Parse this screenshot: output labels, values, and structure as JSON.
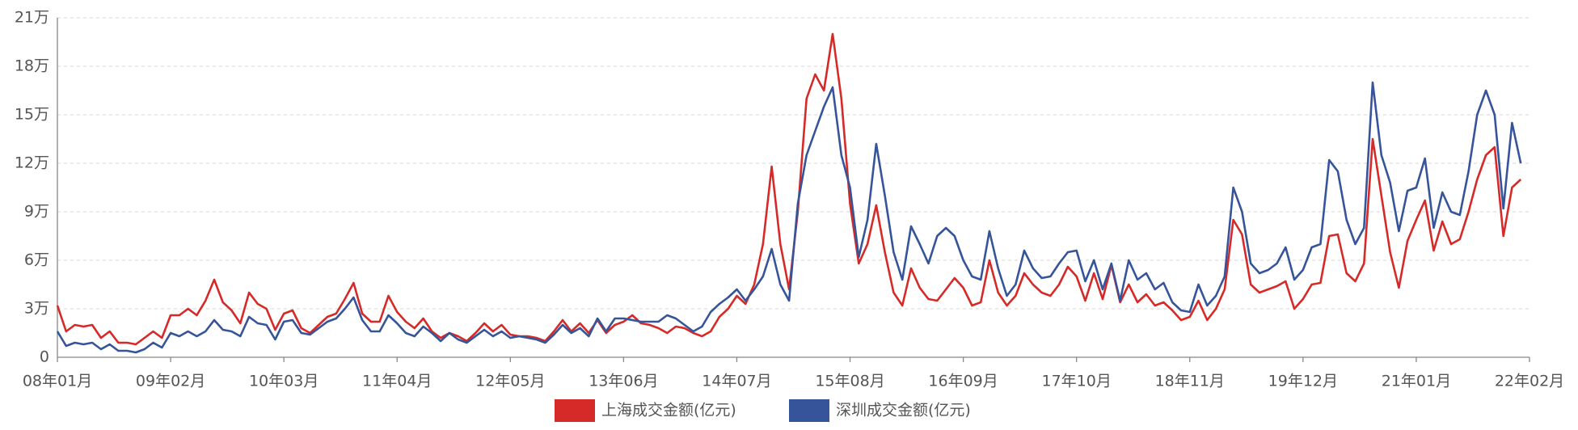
{
  "chart_data": {
    "type": "line",
    "categories": [
      "08年01月",
      null,
      null,
      null,
      null,
      null,
      null,
      null,
      null,
      null,
      null,
      null,
      null,
      "09年02月",
      null,
      null,
      null,
      null,
      null,
      null,
      null,
      null,
      null,
      null,
      null,
      null,
      "10年03月",
      null,
      null,
      null,
      null,
      null,
      null,
      null,
      null,
      null,
      null,
      null,
      null,
      "11年04月",
      null,
      null,
      null,
      null,
      null,
      null,
      null,
      null,
      null,
      null,
      null,
      null,
      "12年05月",
      null,
      null,
      null,
      null,
      null,
      null,
      null,
      null,
      null,
      null,
      null,
      null,
      "13年06月",
      null,
      null,
      null,
      null,
      null,
      null,
      null,
      null,
      null,
      null,
      null,
      null,
      "14年07月",
      null,
      null,
      null,
      null,
      null,
      null,
      null,
      null,
      null,
      null,
      null,
      null,
      "15年08月",
      null,
      null,
      null,
      null,
      null,
      null,
      null,
      null,
      null,
      null,
      null,
      null,
      "16年09月",
      null,
      null,
      null,
      null,
      null,
      null,
      null,
      null,
      null,
      null,
      null,
      null,
      "17年10月",
      null,
      null,
      null,
      null,
      null,
      null,
      null,
      null,
      null,
      null,
      null,
      null,
      "18年11月",
      null,
      null,
      null,
      null,
      null,
      null,
      null,
      null,
      null,
      null,
      null,
      null,
      "19年12月",
      null,
      null,
      null,
      null,
      null,
      null,
      null,
      null,
      null,
      null,
      null,
      null,
      "21年01月",
      null,
      null,
      null,
      null,
      null,
      null,
      null,
      null,
      null,
      null,
      null,
      null,
      "22年02月"
    ],
    "series": [
      {
        "name": "上海成交金额(亿元)",
        "color": "#d62a28",
        "values": [
          32000,
          16000,
          20000,
          19000,
          20000,
          12000,
          16000,
          9000,
          9000,
          8000,
          12000,
          16000,
          12000,
          26000,
          26000,
          30000,
          26000,
          35000,
          48000,
          34000,
          29000,
          21000,
          40000,
          33000,
          30000,
          17000,
          27000,
          29000,
          18000,
          15000,
          20000,
          25000,
          27000,
          36000,
          46000,
          27000,
          22000,
          22000,
          38000,
          28000,
          22000,
          18000,
          24000,
          16000,
          12000,
          15000,
          13000,
          10000,
          15000,
          21000,
          16000,
          20000,
          14000,
          13000,
          13000,
          12000,
          10000,
          16000,
          23000,
          16000,
          21000,
          15000,
          23000,
          15000,
          20000,
          22000,
          26000,
          21000,
          20000,
          18000,
          15000,
          19000,
          18000,
          15000,
          13000,
          16000,
          25000,
          30000,
          38000,
          33000,
          45000,
          70000,
          118000,
          70000,
          42000,
          90000,
          160000,
          175000,
          165000,
          200000,
          160000,
          95000,
          58000,
          70000,
          94000,
          65000,
          40000,
          32000,
          55000,
          43000,
          36000,
          35000,
          42000,
          49000,
          43000,
          32000,
          34000,
          60000,
          40000,
          32000,
          38000,
          52000,
          45000,
          40000,
          38000,
          45000,
          56000,
          50000,
          35000,
          52000,
          36000,
          57000,
          34000,
          45000,
          34000,
          39000,
          32000,
          34000,
          29000,
          23000,
          25000,
          35000,
          23000,
          30000,
          42000,
          85000,
          76000,
          45000,
          40000,
          42000,
          44000,
          47000,
          30000,
          36000,
          45000,
          46000,
          75000,
          76000,
          52000,
          47000,
          58000,
          135000,
          100000,
          65000,
          43000,
          72000,
          85000,
          97000,
          66000,
          84000,
          70000,
          73000,
          90000,
          110000,
          125000,
          130000,
          75000,
          105000,
          110000,
          null
        ]
      },
      {
        "name": "深圳成交金额(亿元)",
        "color": "#36549a",
        "values": [
          16000,
          7000,
          9000,
          8000,
          9000,
          5000,
          8000,
          4000,
          4000,
          3000,
          5000,
          9000,
          6000,
          15000,
          13000,
          16000,
          13000,
          16000,
          23000,
          17000,
          16000,
          13000,
          25000,
          21000,
          20000,
          11000,
          22000,
          23000,
          15000,
          14000,
          18000,
          22000,
          24000,
          30000,
          37000,
          23000,
          16000,
          16000,
          26000,
          21000,
          15000,
          13000,
          19000,
          15000,
          10000,
          15000,
          11000,
          9000,
          13000,
          17000,
          13000,
          16000,
          12000,
          13000,
          12000,
          11000,
          9000,
          14000,
          20000,
          15000,
          18000,
          13000,
          24000,
          16000,
          24000,
          24000,
          23000,
          22000,
          22000,
          22000,
          26000,
          24000,
          20000,
          16000,
          19000,
          28000,
          33000,
          37000,
          42000,
          35000,
          42000,
          50000,
          67000,
          45000,
          35000,
          95000,
          125000,
          140000,
          155000,
          167000,
          125000,
          105000,
          62000,
          85000,
          132000,
          100000,
          65000,
          48000,
          81000,
          70000,
          58000,
          75000,
          80000,
          75000,
          60000,
          50000,
          48000,
          78000,
          55000,
          38000,
          45000,
          66000,
          55000,
          49000,
          50000,
          58000,
          65000,
          66000,
          47000,
          60000,
          42000,
          58000,
          35000,
          60000,
          48000,
          52000,
          42000,
          46000,
          34000,
          29000,
          28000,
          45000,
          32000,
          38000,
          50000,
          105000,
          90000,
          58000,
          52000,
          54000,
          58000,
          68000,
          48000,
          54000,
          68000,
          70000,
          122000,
          115000,
          85000,
          70000,
          80000,
          170000,
          125000,
          108000,
          78000,
          103000,
          105000,
          123000,
          80000,
          102000,
          90000,
          88000,
          115000,
          150000,
          165000,
          150000,
          92000,
          145000,
          120000,
          null
        ]
      }
    ],
    "ylim": [
      0,
      210000
    ],
    "yticks": [
      0,
      {
        "value": 30000,
        "label": "3万"
      },
      {
        "value": 60000,
        "label": "6万"
      },
      {
        "value": 90000,
        "label": "9万"
      },
      {
        "value": 120000,
        "label": "12万"
      },
      {
        "value": 150000,
        "label": "15万"
      },
      {
        "value": 180000,
        "label": "18万"
      },
      {
        "value": 210000,
        "label": "21万"
      }
    ],
    "grid": true,
    "legend": "bottom"
  }
}
